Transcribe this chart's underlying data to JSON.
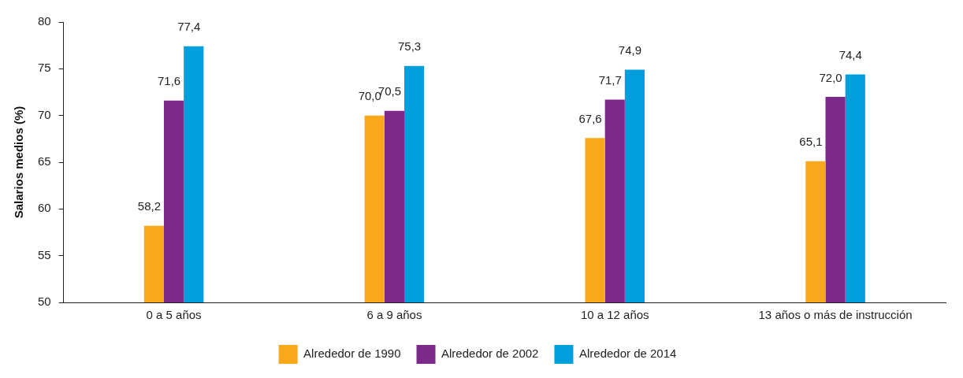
{
  "chart_data": {
    "type": "bar",
    "ylabel": "Salarios medios (%)",
    "categories": [
      "0 a 5 años",
      "6 a 9 años",
      "10 a 12 años",
      "13 años o más de instrucción"
    ],
    "series": [
      {
        "name": "Alrededor de 1990",
        "color": "#f9a81c",
        "values": [
          58.2,
          70.0,
          67.6,
          65.1
        ],
        "value_labels": [
          "58,2",
          "70,0",
          "67,6",
          "65,1"
        ]
      },
      {
        "name": "Alrededor de 2002",
        "color": "#7b2a8a",
        "values": [
          71.6,
          70.5,
          71.7,
          72.0
        ],
        "value_labels": [
          "71,6",
          "70,5",
          "71,7",
          "72,0"
        ]
      },
      {
        "name": "Alrededor de 2014",
        "color": "#009fdb",
        "values": [
          77.4,
          75.3,
          74.9,
          74.4
        ],
        "value_labels": [
          "77,4",
          "75,3",
          "74,9",
          "74,4"
        ]
      }
    ],
    "ylim": [
      50,
      80
    ],
    "yticks": [
      50,
      55,
      60,
      65,
      70,
      75,
      80
    ],
    "grid": false,
    "legend": "bottom"
  }
}
